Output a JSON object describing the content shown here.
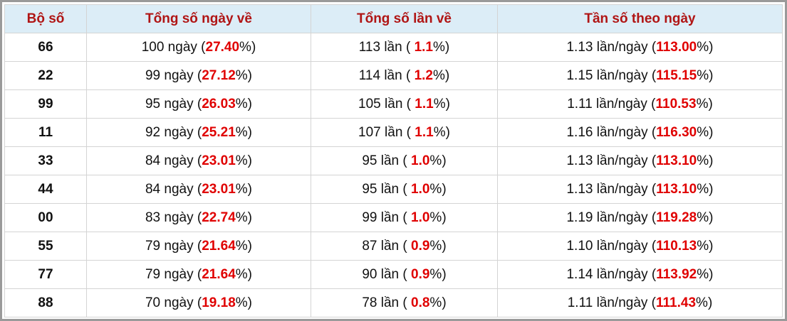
{
  "table": {
    "header": [
      "Bộ số",
      "Tổng số ngày về",
      "Tổng số lần về",
      "Tần số theo ngày"
    ],
    "rows": [
      [
        "66",
        [
          "100 ngày (",
          "27.40",
          "%)"
        ],
        [
          "113 lần ( ",
          "1.1",
          "%)"
        ],
        [
          "1.13 lần/ngày (",
          "113.00",
          "%)"
        ]
      ],
      [
        "22",
        [
          "99 ngày (",
          "27.12",
          "%)"
        ],
        [
          "114 lần ( ",
          "1.2",
          "%)"
        ],
        [
          "1.15 lần/ngày (",
          "115.15",
          "%)"
        ]
      ],
      [
        "99",
        [
          "95 ngày (",
          "26.03",
          "%)"
        ],
        [
          "105 lần ( ",
          "1.1",
          "%)"
        ],
        [
          "1.11 lần/ngày (",
          "110.53",
          "%)"
        ]
      ],
      [
        "11",
        [
          "92 ngày (",
          "25.21",
          "%)"
        ],
        [
          "107 lần ( ",
          "1.1",
          "%)"
        ],
        [
          "1.16 lần/ngày (",
          "116.30",
          "%)"
        ]
      ],
      [
        "33",
        [
          "84 ngày (",
          "23.01",
          "%)"
        ],
        [
          "95 lần ( ",
          "1.0",
          "%)"
        ],
        [
          "1.13 lần/ngày (",
          "113.10",
          "%)"
        ]
      ],
      [
        "44",
        [
          "84 ngày (",
          "23.01",
          "%)"
        ],
        [
          "95 lần ( ",
          "1.0",
          "%)"
        ],
        [
          "1.13 lần/ngày (",
          "113.10",
          "%)"
        ]
      ],
      [
        "00",
        [
          "83 ngày (",
          "22.74",
          "%)"
        ],
        [
          "99 lần ( ",
          "1.0",
          "%)"
        ],
        [
          "1.19 lần/ngày (",
          "119.28",
          "%)"
        ]
      ],
      [
        "55",
        [
          "79 ngày (",
          "21.64",
          "%)"
        ],
        [
          "87 lần ( ",
          "0.9",
          "%)"
        ],
        [
          "1.10 lần/ngày (",
          "110.13",
          "%)"
        ]
      ],
      [
        "77",
        [
          "79 ngày (",
          "21.64",
          "%)"
        ],
        [
          "90 lần ( ",
          "0.9",
          "%)"
        ],
        [
          "1.14 lần/ngày (",
          "113.92",
          "%)"
        ]
      ],
      [
        "88",
        [
          "70 ngày (",
          "19.18",
          "%)"
        ],
        [
          "78 lần ( ",
          "0.8",
          "%)"
        ],
        [
          "1.11 lần/ngày (",
          "111.43",
          "%)"
        ]
      ]
    ]
  }
}
